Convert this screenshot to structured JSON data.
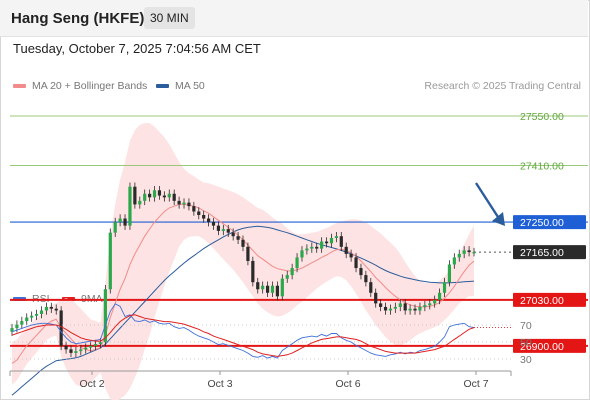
{
  "header": {
    "title": "Hang Seng (HKFE)",
    "interval": "30 MIN"
  },
  "timestamp": "Tuesday, October 7, 2025 7:04:56 AM CET",
  "legend": {
    "ma_label": "MA 20 + Bollinger Bands",
    "ma50_label": "MA 50",
    "rsi_label": "RSI",
    "ma9_label": "9MA",
    "copyright": "Research © 2025 Trading Central"
  },
  "colors": {
    "bollinger": "#f28b8b",
    "ma50": "#2b5c9c",
    "rsi": "#3e6fd8",
    "ma9": "#e02020",
    "resistance_green": "#9bc97a",
    "pivot_blue": "#1e5fd6",
    "support_red": "#e31515",
    "current": "#2a2a2a"
  },
  "chart_data": [
    {
      "type": "candlestick",
      "price_levels": [
        {
          "value": 27550,
          "label": "27550.00",
          "kind": "resistance"
        },
        {
          "value": 27410,
          "label": "27410.00",
          "kind": "resistance"
        },
        {
          "value": 27250,
          "label": "27250.00",
          "kind": "pivot"
        },
        {
          "value": 27165,
          "label": "27165.00",
          "kind": "current"
        },
        {
          "value": 27030,
          "label": "27030.00",
          "kind": "support"
        },
        {
          "value": 26900,
          "label": "26900.00",
          "kind": "support"
        }
      ],
      "x_ticks": [
        "Oct 2",
        "Oct 3",
        "Oct 6",
        "Oct 7"
      ],
      "legend": [
        "MA 20 + Bollinger Bands",
        "MA 50"
      ],
      "ylim": [
        26650,
        27800
      ],
      "closes": [
        26950,
        26960,
        26970,
        26980,
        26985,
        26990,
        27000,
        27010,
        27005,
        27000,
        26900,
        26890,
        26880,
        26885,
        26890,
        26895,
        26900,
        26905,
        26910,
        27060,
        27220,
        27250,
        27260,
        27240,
        27350,
        27300,
        27310,
        27330,
        27320,
        27340,
        27325,
        27320,
        27330,
        27310,
        27300,
        27305,
        27295,
        27280,
        27270,
        27260,
        27250,
        27240,
        27225,
        27230,
        27220,
        27210,
        27200,
        27180,
        27140,
        27080,
        27060,
        27070,
        27050,
        27070,
        27040,
        27090,
        27100,
        27120,
        27150,
        27170,
        27175,
        27180,
        27175,
        27195,
        27190,
        27205,
        27210,
        27180,
        27160,
        27150,
        27120,
        27100,
        27080,
        27050,
        27020,
        27010,
        27000,
        27005,
        27010,
        27020,
        27000,
        27005,
        27000,
        27010,
        27015,
        27020,
        27030,
        27050,
        27080,
        27130,
        27150,
        27160,
        27170,
        27165,
        27165
      ],
      "ma20": [
        26850,
        26860,
        26880,
        26900,
        26915,
        26930,
        26945,
        26960,
        26970,
        26975,
        26950,
        26935,
        26920,
        26905,
        26895,
        26890,
        26885,
        26890,
        26895,
        26930,
        26980,
        27020,
        27060,
        27090,
        27130,
        27160,
        27185,
        27210,
        27230,
        27250,
        27265,
        27280,
        27290,
        27295,
        27300,
        27300,
        27298,
        27295,
        27290,
        27282,
        27275,
        27265,
        27255,
        27245,
        27235,
        27225,
        27213,
        27200,
        27185,
        27170,
        27155,
        27145,
        27135,
        27125,
        27118,
        27115,
        27112,
        27112,
        27115,
        27120,
        27127,
        27135,
        27142,
        27150,
        27157,
        27165,
        27172,
        27173,
        27170,
        27163,
        27153,
        27140,
        27125,
        27110,
        27093,
        27080,
        27065,
        27052,
        27040,
        27030,
        27022,
        27016,
        27012,
        27010,
        27010,
        27012,
        27016,
        27022,
        27035,
        27050,
        27068,
        27090,
        27110,
        27128,
        27140
      ],
      "ma50": [
        26760,
        26772,
        26784,
        26796,
        26808,
        26820,
        26832,
        26842,
        26850,
        26858,
        26860,
        26862,
        26864,
        26866,
        26870,
        26876,
        26882,
        26888,
        26894,
        26905,
        26920,
        26935,
        26950,
        26965,
        26980,
        26995,
        27010,
        27025,
        27040,
        27055,
        27070,
        27085,
        27098,
        27110,
        27122,
        27134,
        27145,
        27155,
        27165,
        27175,
        27184,
        27192,
        27200,
        27208,
        27215,
        27222,
        27228,
        27232,
        27235,
        27237,
        27238,
        27237,
        27235,
        27232,
        27228,
        27224,
        27220,
        27215,
        27210,
        27205,
        27200,
        27195,
        27190,
        27186,
        27182,
        27178,
        27174,
        27170,
        27165,
        27160,
        27154,
        27148,
        27142,
        27135,
        27128,
        27120,
        27113,
        27107,
        27102,
        27097,
        27093,
        27090,
        27087,
        27084,
        27082,
        27080,
        27079,
        27078,
        27078,
        27078,
        27079,
        27080,
        27081,
        27082,
        27083
      ],
      "bb_width": [
        60,
        58,
        55,
        52,
        50,
        48,
        46,
        45,
        45,
        46,
        80,
        100,
        110,
        115,
        110,
        100,
        90,
        80,
        70,
        150,
        230,
        280,
        310,
        330,
        350,
        350,
        340,
        320,
        300,
        270,
        240,
        210,
        180,
        150,
        120,
        100,
        90,
        85,
        80,
        80,
        85,
        90,
        95,
        100,
        105,
        110,
        115,
        120,
        125,
        130,
        135,
        140,
        140,
        138,
        135,
        130,
        120,
        110,
        100,
        95,
        90,
        85,
        80,
        78,
        76,
        75,
        75,
        78,
        85,
        95,
        105,
        115,
        125,
        130,
        135,
        138,
        140,
        140,
        138,
        130,
        115,
        100,
        85,
        75,
        68,
        65,
        63,
        62,
        62,
        63,
        65,
        70,
        78,
        88,
        100
      ]
    },
    {
      "type": "line",
      "title": "RSI",
      "series": [
        {
          "name": "RSI",
          "values": [
            62,
            64,
            66,
            68,
            70,
            71,
            72,
            72,
            71,
            70,
            62,
            55,
            50,
            48,
            49,
            50,
            51,
            52,
            53,
            70,
            86,
            95,
            92,
            80,
            82,
            75,
            74,
            76,
            73,
            75,
            72,
            71,
            72,
            68,
            66,
            67,
            64,
            60,
            57,
            55,
            53,
            50,
            47,
            48,
            46,
            44,
            42,
            40,
            37,
            33,
            32,
            34,
            31,
            33,
            31,
            40,
            44,
            48,
            52,
            55,
            56,
            57,
            56,
            59,
            57,
            60,
            60,
            55,
            52,
            50,
            46,
            43,
            40,
            37,
            35,
            34,
            33,
            35,
            36,
            38,
            36,
            38,
            37,
            40,
            41,
            43,
            45,
            50,
            56,
            68,
            70,
            71,
            72,
            68,
            67
          ]
        },
        {
          "name": "9MA",
          "values": [
            58,
            60,
            62,
            64,
            66,
            68,
            69,
            70,
            70,
            70,
            68,
            65,
            61,
            58,
            55,
            53,
            52,
            51,
            51,
            55,
            61,
            68,
            74,
            78,
            81,
            82,
            80,
            78,
            77,
            76,
            75,
            74,
            74,
            73,
            72,
            71,
            69,
            67,
            65,
            62,
            60,
            57,
            55,
            53,
            51,
            49,
            47,
            45,
            43,
            41,
            38,
            36,
            35,
            34,
            33,
            34,
            35,
            37,
            40,
            43,
            46,
            49,
            51,
            53,
            54,
            55,
            56,
            56,
            55,
            54,
            53,
            51,
            48,
            45,
            43,
            41,
            39,
            38,
            37,
            37,
            37,
            37,
            37,
            38,
            39,
            40,
            41,
            43,
            45,
            49,
            53,
            57,
            61,
            65,
            67
          ]
        }
      ],
      "y_ticks": [
        "70",
        "50",
        "30"
      ],
      "ylim": [
        20,
        85
      ]
    }
  ]
}
